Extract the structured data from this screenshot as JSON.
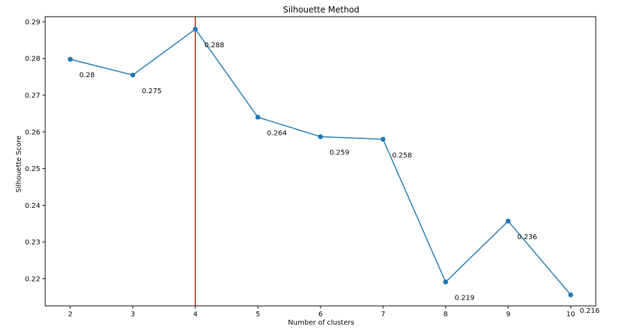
{
  "chart_data": {
    "type": "line",
    "title": "Silhouette Method",
    "xlabel": "Number of clusters",
    "ylabel": "Silhouette Score",
    "x": [
      2,
      3,
      4,
      5,
      6,
      7,
      8,
      9,
      10
    ],
    "series": [
      {
        "values": [
          0.2798,
          0.2755,
          0.288,
          0.264,
          0.2587,
          0.258,
          0.2191,
          0.2357,
          0.2156
        ],
        "labels": [
          "0.28",
          "0.275",
          "0.288",
          "0.264",
          "0.259",
          "0.258",
          "0.219",
          "0.236",
          "0.216"
        ],
        "color": "#1f77b4",
        "marker": "circle"
      }
    ],
    "xticks": [
      "2",
      "3",
      "4",
      "5",
      "6",
      "7",
      "8",
      "9",
      "10"
    ],
    "yticks": [
      "0.22",
      "0.23",
      "0.24",
      "0.25",
      "0.26",
      "0.27",
      "0.28",
      "0.29"
    ],
    "ytick_values": [
      0.22,
      0.23,
      0.24,
      0.25,
      0.26,
      0.27,
      0.28,
      0.29
    ],
    "xlim": [
      1.6,
      10.4
    ],
    "ylim": [
      0.2126,
      0.2914
    ],
    "vline": {
      "x": 4,
      "color": "#ff0000"
    },
    "grid": false,
    "legend": "none"
  }
}
